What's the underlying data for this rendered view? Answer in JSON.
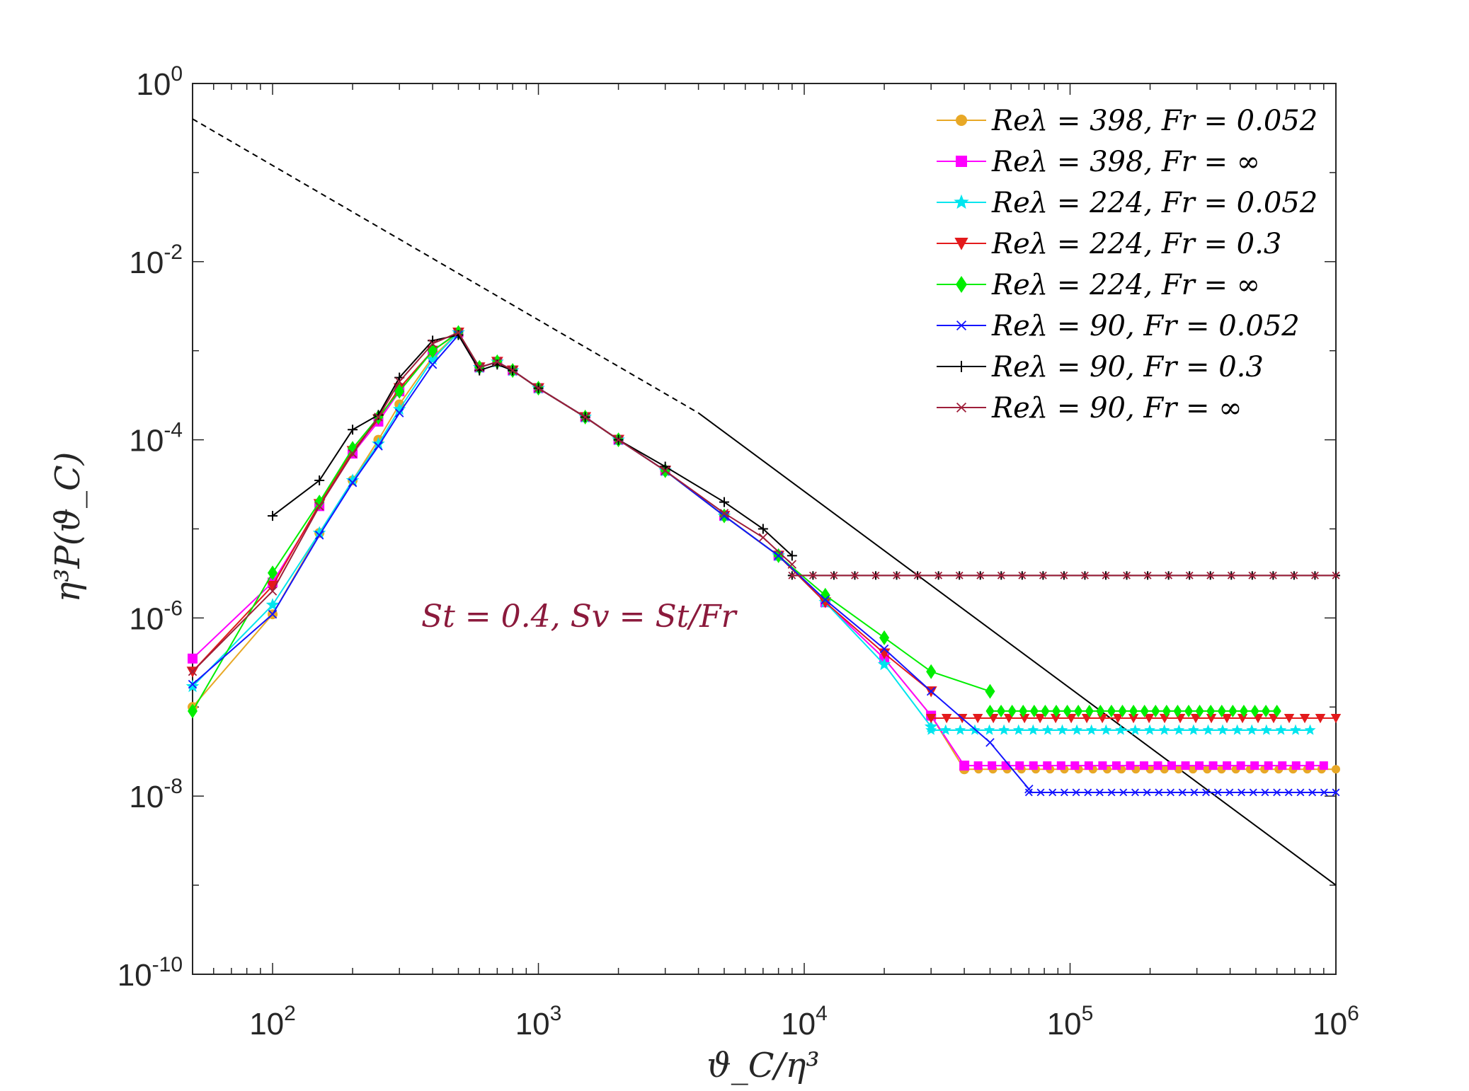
{
  "chart_data": {
    "type": "line",
    "xscale": "log",
    "yscale": "log",
    "xlim": [
      50,
      1000000
    ],
    "ylim": [
      1e-10,
      1
    ],
    "grid": false,
    "legend_position": "top-right",
    "xlabel": "ϑ_C/η³",
    "ylabel": "η³P(ϑ_C)",
    "x_ticks": [
      {
        "value": 100,
        "base": "10",
        "exp": "2"
      },
      {
        "value": 1000,
        "base": "10",
        "exp": "3"
      },
      {
        "value": 10000,
        "base": "10",
        "exp": "4"
      },
      {
        "value": 100000,
        "base": "10",
        "exp": "5"
      },
      {
        "value": 1000000,
        "base": "10",
        "exp": "6"
      }
    ],
    "y_ticks": [
      {
        "value": 1,
        "base": "10",
        "exp": "0"
      },
      {
        "value": 0.01,
        "base": "10",
        "exp": "-2"
      },
      {
        "value": 0.0001,
        "base": "10",
        "exp": "-4"
      },
      {
        "value": 1e-06,
        "base": "10",
        "exp": "-6"
      },
      {
        "value": 1e-08,
        "base": "10",
        "exp": "-8"
      },
      {
        "value": 1e-10,
        "base": "10",
        "exp": "-10"
      }
    ],
    "annotation": {
      "text": "St = 0.4, Sv = St/Fr",
      "color": "#8b1a3c",
      "x": 5000,
      "y": 1e-06
    },
    "reference_line": {
      "description": "power-law reference, dashed for x < 4000, solid beyond",
      "points": [
        [
          50,
          0.4
        ],
        [
          4000,
          0.0002
        ],
        [
          1000000,
          1e-09
        ]
      ],
      "dash_until_x": 4000,
      "color": "#000000"
    },
    "series": [
      {
        "name": "Re_λ = 398, Fr = 0.052",
        "legend": "Reλ = 398, Fr = 0.052",
        "color": "#e8a826",
        "marker": "circle",
        "x": [
          50,
          100,
          150,
          200,
          250,
          300,
          400,
          500,
          600,
          700,
          800,
          1000,
          1500,
          2000,
          3000,
          5000,
          8000,
          12000,
          20000,
          30000,
          40000
        ],
        "y": [
          1e-07,
          1.1e-06,
          9e-06,
          3.5e-05,
          0.0001,
          0.00025,
          0.00085,
          0.0016,
          0.00065,
          0.00075,
          0.0006,
          0.00038,
          0.00018,
          0.0001,
          4.5e-05,
          1.4e-05,
          5e-06,
          1.5e-06,
          3.5e-07,
          8e-08,
          2e-08
        ],
        "floor_y": 2e-08,
        "floor_from_x": 40000,
        "floor_to_x": 1000000
      },
      {
        "name": "Re_λ = 398, Fr = ∞",
        "legend": "Reλ = 398, Fr = ∞",
        "color": "#ff00ff",
        "marker": "square",
        "x": [
          50,
          100,
          150,
          200,
          250,
          300,
          400,
          500,
          600,
          700,
          800,
          1000,
          1500,
          2000,
          3000,
          5000,
          8000,
          12000,
          20000,
          30000,
          40000
        ],
        "y": [
          3.5e-07,
          2.5e-06,
          1.8e-05,
          7e-05,
          0.00016,
          0.00035,
          0.001,
          0.0016,
          0.00065,
          0.00075,
          0.0006,
          0.00038,
          0.00018,
          0.0001,
          4.5e-05,
          1.4e-05,
          5e-06,
          1.5e-06,
          3.5e-07,
          8e-08,
          2.2e-08
        ],
        "floor_y": 2.2e-08,
        "floor_from_x": 40000,
        "floor_to_x": 900000
      },
      {
        "name": "Re_λ = 224, Fr = 0.052",
        "legend": "Reλ = 224, Fr = 0.052",
        "color": "#00e5ee",
        "marker": "star",
        "x": [
          50,
          100,
          150,
          200,
          250,
          300,
          400,
          500,
          600,
          700,
          800,
          1000,
          1500,
          2000,
          3000,
          5000,
          8000,
          12000,
          20000,
          30000
        ],
        "y": [
          1.7e-07,
          1.4e-06,
          9e-06,
          3.5e-05,
          9e-05,
          0.00022,
          0.0008,
          0.0016,
          0.00065,
          0.00075,
          0.0006,
          0.00038,
          0.00018,
          0.0001,
          4.5e-05,
          1.4e-05,
          5e-06,
          1.5e-06,
          3e-07,
          6e-08
        ],
        "floor_y": 5.5e-08,
        "floor_from_x": 30000,
        "floor_to_x": 800000
      },
      {
        "name": "Re_λ = 224, Fr = 0.3",
        "legend": "Reλ = 224, Fr = 0.3",
        "color": "#e31a1c",
        "marker": "triangle-down",
        "x": [
          50,
          100,
          150,
          200,
          250,
          300,
          400,
          500,
          600,
          700,
          800,
          1000,
          1500,
          2000,
          3000,
          5000,
          8000,
          12000,
          20000,
          30000
        ],
        "y": [
          2.5e-07,
          2.3e-06,
          1.9e-05,
          7.5e-05,
          0.00017,
          0.00038,
          0.001,
          0.0016,
          0.00065,
          0.00075,
          0.0006,
          0.00038,
          0.00018,
          0.0001,
          4.5e-05,
          1.4e-05,
          5e-06,
          1.5e-06,
          4e-07,
          1.5e-07
        ],
        "floor_y": 7.5e-08,
        "floor_from_x": 30000,
        "floor_to_x": 1000000
      },
      {
        "name": "Re_λ = 224, Fr = ∞",
        "legend": "Reλ = 224, Fr = ∞",
        "color": "#00ee00",
        "marker": "diamond",
        "x": [
          50,
          100,
          150,
          200,
          250,
          300,
          400,
          500,
          600,
          700,
          800,
          1000,
          1500,
          2000,
          3000,
          5000,
          8000,
          12000,
          20000,
          30000,
          50000
        ],
        "y": [
          9e-08,
          3.2e-06,
          2e-05,
          8e-05,
          0.00018,
          0.00035,
          0.001,
          0.0016,
          0.00065,
          0.00075,
          0.0006,
          0.00038,
          0.00018,
          0.0001,
          4.5e-05,
          1.4e-05,
          5e-06,
          1.8e-06,
          6e-07,
          2.5e-07,
          1.5e-07
        ],
        "floor_y": 9e-08,
        "floor_from_x": 50000,
        "floor_to_x": 600000
      },
      {
        "name": "Re_λ = 90, Fr = 0.052",
        "legend": "Reλ = 90, Fr = 0.052",
        "color": "#1414ff",
        "marker": "x",
        "x": [
          50,
          100,
          150,
          200,
          250,
          300,
          400,
          500,
          600,
          700,
          800,
          1000,
          1500,
          2000,
          3000,
          5000,
          8000,
          12000,
          20000,
          30000,
          50000,
          70000
        ],
        "y": [
          1.8e-07,
          1.1e-06,
          8.5e-06,
          3.3e-05,
          8.5e-05,
          0.0002,
          0.0007,
          0.0015,
          0.00065,
          0.00075,
          0.0006,
          0.00038,
          0.00018,
          0.0001,
          4.5e-05,
          1.4e-05,
          5e-06,
          1.6e-06,
          4.5e-07,
          1.5e-07,
          4e-08,
          1.2e-08
        ],
        "floor_y": 1.1e-08,
        "floor_from_x": 70000,
        "floor_to_x": 1000000
      },
      {
        "name": "Re_λ = 90, Fr = 0.3",
        "legend": "Reλ = 90, Fr = 0.3",
        "color": "#000000",
        "marker": "plus",
        "x": [
          100,
          150,
          200,
          250,
          300,
          400,
          500,
          600,
          700,
          800,
          1000,
          1500,
          2000,
          3000,
          5000,
          7000,
          9000
        ],
        "y": [
          1.4e-05,
          3.5e-05,
          0.00013,
          0.00019,
          0.0005,
          0.0013,
          0.0015,
          0.0006,
          0.0007,
          0.0006,
          0.00038,
          0.00018,
          0.0001,
          5e-05,
          2e-05,
          1e-05,
          5e-06
        ],
        "floor_y": 3e-06,
        "floor_from_x": 9000,
        "floor_to_x": 1000000
      },
      {
        "name": "Re_λ = 90, Fr = ∞",
        "legend": "Reλ = 90, Fr = ∞",
        "color": "#9e1f3a",
        "marker": "x",
        "x": [
          50,
          100,
          150,
          200,
          250,
          300,
          400,
          500,
          600,
          700,
          800,
          1000,
          1500,
          2000,
          3000,
          5000,
          7000,
          9000
        ],
        "y": [
          2.5e-07,
          2e-06,
          1.8e-05,
          7e-05,
          0.00018,
          0.00045,
          0.0012,
          0.0016,
          0.00065,
          0.00075,
          0.0006,
          0.00038,
          0.00018,
          0.0001,
          4.5e-05,
          1.5e-05,
          8e-06,
          4e-06
        ],
        "floor_y": 3e-06,
        "floor_from_x": 9000,
        "floor_to_x": 1000000
      }
    ]
  }
}
